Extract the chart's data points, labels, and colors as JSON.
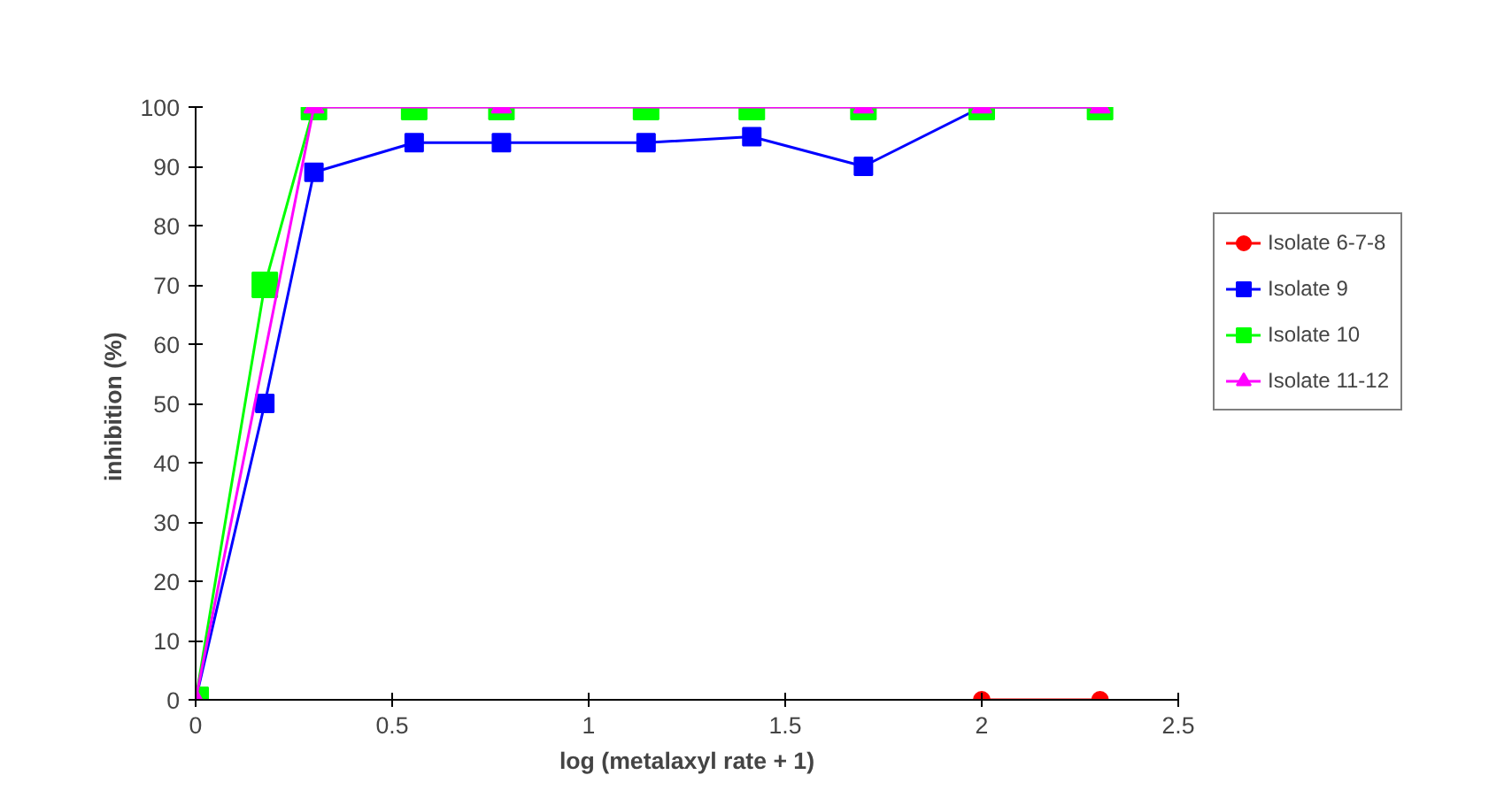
{
  "chart_data": {
    "type": "line",
    "xlabel": "log (metalaxyl rate + 1)",
    "ylabel": "inhibition  (%)",
    "xlim": [
      0,
      2.5
    ],
    "xticks": [
      0,
      0.5,
      1,
      1.5,
      2,
      2.5
    ],
    "ylim": [
      0,
      100
    ],
    "yticks": [
      0,
      10,
      20,
      30,
      40,
      50,
      60,
      70,
      80,
      90,
      100
    ],
    "grid": false,
    "legend": "right",
    "line_style": "solid",
    "series": [
      {
        "name": "Isolate 6-7-8",
        "color": "#ff0000",
        "marker": "circle",
        "x": [
          2,
          2.301
        ],
        "values": [
          0,
          0
        ]
      },
      {
        "name": "Isolate 9",
        "color": "#0000ff",
        "marker": "square",
        "x": [
          0,
          0.176,
          0.301,
          0.556,
          0.778,
          1.146,
          1.415,
          1.699,
          2,
          2.301
        ],
        "values": [
          0,
          50,
          89,
          94,
          94,
          94,
          95,
          90,
          100,
          100
        ]
      },
      {
        "name": "Isolate 10",
        "color": "#00ff00",
        "marker": "square",
        "x": [
          0,
          0.176,
          0.301,
          0.556,
          0.778,
          1.146,
          1.415,
          1.699,
          2,
          2.301
        ],
        "values": [
          0,
          70,
          100,
          100,
          100,
          100,
          100,
          100,
          100,
          100
        ]
      },
      {
        "name": "Isolate 11-12",
        "color": "#ff00ff",
        "marker": "triangle",
        "x": [
          0,
          0.301,
          0.778,
          1.699,
          2,
          2.301
        ],
        "values": [
          0,
          100,
          100,
          100,
          100,
          100
        ]
      }
    ]
  }
}
